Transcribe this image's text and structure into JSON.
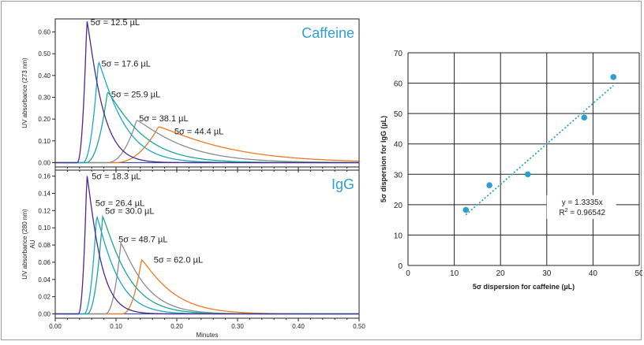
{
  "colors": {
    "purple": "#4b2a8c",
    "cyan": "#1fa6c9",
    "teal": "#1fa595",
    "gray": "#8c8c8c",
    "orange": "#ee7a22",
    "blue_baseline": "#3a55a5",
    "accent": "#2ea0cf",
    "frame": "#9a9a9a"
  },
  "chart_data": [
    {
      "type": "line",
      "panel": "caffeine-chromatogram",
      "title": "Caffeine",
      "ylabel": "UV absorbance (273 nm)",
      "xlim": [
        0,
        0.5
      ],
      "ylim": [
        -0.02,
        0.66
      ],
      "yticks": [
        "0.00",
        "0.10",
        "0.20",
        "0.30",
        "0.40",
        "0.50",
        "0.60"
      ],
      "series": [
        {
          "name": "5σ = 12.5 µL",
          "color": "purple",
          "t0": 0.036,
          "peak_t": 0.052,
          "peak": 0.655,
          "label_t": 0.058,
          "label_y": 0.645
        },
        {
          "name": "5σ = 17.6 µL",
          "color": "cyan",
          "t0": 0.045,
          "peak_t": 0.071,
          "peak": 0.465,
          "label_t": 0.076,
          "label_y": 0.455
        },
        {
          "name": "5σ = 25.9 µL",
          "color": "teal",
          "t0": 0.05,
          "peak_t": 0.086,
          "peak": 0.325,
          "label_t": 0.092,
          "label_y": 0.315
        },
        {
          "name": "5σ = 38.1 µL",
          "color": "gray",
          "t0": 0.085,
          "peak_t": 0.134,
          "peak": 0.195,
          "label_t": 0.138,
          "label_y": 0.205
        },
        {
          "name": "5σ = 44.4 µL",
          "color": "orange",
          "t0": 0.098,
          "peak_t": 0.17,
          "peak": 0.165,
          "label_t": 0.196,
          "label_y": 0.145
        }
      ]
    },
    {
      "type": "line",
      "panel": "igg-chromatogram",
      "title": "IgG",
      "ylabel": "UV absorbance (280 nm)",
      "yunit": "AU",
      "xlabel": "Minutes",
      "xlim": [
        0,
        0.5
      ],
      "ylim": [
        -0.005,
        0.167
      ],
      "xticks": [
        "0.00",
        "0.10",
        "0.20",
        "0.30",
        "0.40",
        "0.50"
      ],
      "yticks": [
        "0.00",
        "0.02",
        "0.04",
        "0.06",
        "0.08",
        "0.10",
        "0.12",
        "0.14",
        "0.16"
      ],
      "series": [
        {
          "name": "5σ = 18.3 µL",
          "color": "purple",
          "t0": 0.038,
          "peak_t": 0.052,
          "peak": 0.162,
          "label_t": 0.06,
          "label_y": 0.16
        },
        {
          "name": "5σ = 26.4 µL",
          "color": "cyan",
          "t0": 0.047,
          "peak_t": 0.068,
          "peak": 0.114,
          "label_t": 0.066,
          "label_y": 0.129
        },
        {
          "name": "5σ = 30.0 µL",
          "color": "teal",
          "t0": 0.052,
          "peak_t": 0.078,
          "peak": 0.113,
          "label_t": 0.082,
          "label_y": 0.12
        },
        {
          "name": "5σ = 48.7 µL",
          "color": "gray",
          "t0": 0.082,
          "peak_t": 0.108,
          "peak": 0.082,
          "label_t": 0.104,
          "label_y": 0.087
        },
        {
          "name": "5σ = 62.0 µL",
          "color": "orange",
          "t0": 0.11,
          "peak_t": 0.142,
          "peak": 0.063,
          "label_t": 0.162,
          "label_y": 0.063
        }
      ]
    },
    {
      "type": "scatter",
      "panel": "dispersion-correlation",
      "xlabel": "5σ dispersion for caffeine (µL)",
      "ylabel": "5σ dispersion for IgG (µL)",
      "xlim": [
        0,
        50
      ],
      "ylim": [
        0,
        70
      ],
      "grid": true,
      "xticks": [
        "0",
        "10",
        "20",
        "30",
        "40",
        "50"
      ],
      "yticks": [
        "0",
        "10",
        "20",
        "30",
        "40",
        "50",
        "60",
        "70"
      ],
      "points": [
        {
          "x": 12.5,
          "y": 18.3
        },
        {
          "x": 17.6,
          "y": 26.4
        },
        {
          "x": 25.9,
          "y": 30.0
        },
        {
          "x": 38.1,
          "y": 48.7
        },
        {
          "x": 44.4,
          "y": 62.0
        }
      ],
      "trendline": {
        "slope": 1.3335,
        "intercept": 0,
        "x_range": [
          12.5,
          44.4
        ],
        "style": "dotted"
      },
      "annotation": {
        "equation": "y = 1.3335x",
        "r2_label": "R",
        "r2_exp": "2",
        "r2_value": " = 0.96542"
      }
    }
  ]
}
